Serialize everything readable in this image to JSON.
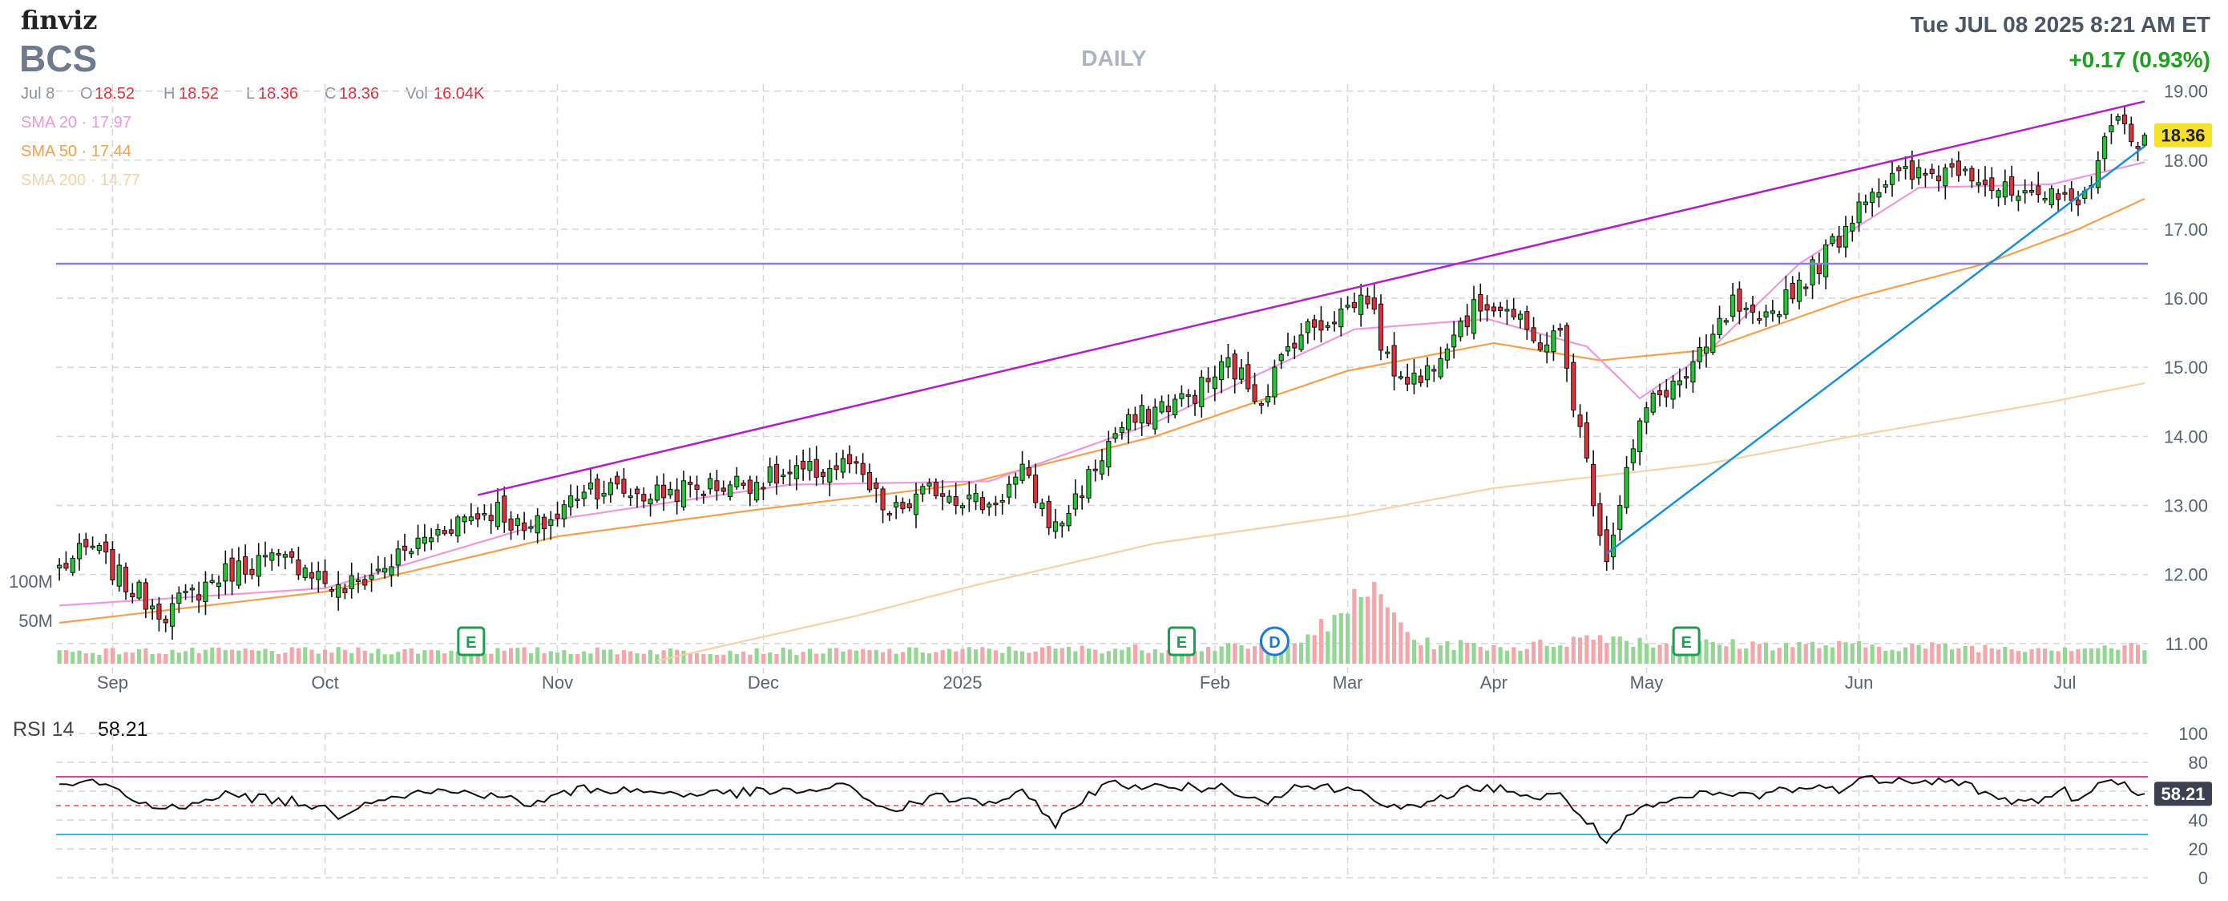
{
  "header": {
    "logo": "finviz",
    "ticker": "BCS",
    "timeframe": "DAILY",
    "datetime": "Tue JUL 08 2025 8:21 AM ET",
    "change": "+0.17 (0.93%)"
  },
  "ohlc": {
    "date": "Jul 8",
    "open_label": "O",
    "open": "18.52",
    "high_label": "H",
    "high": "18.52",
    "low_label": "L",
    "low": "18.36",
    "close_label": "C",
    "close": "18.36",
    "vol_label": "Vol",
    "vol": "16.04K"
  },
  "sma_legend": [
    {
      "label": "SMA 20",
      "value": "17.97",
      "color": "#ee99dd"
    },
    {
      "label": "SMA 50",
      "value": "17.44",
      "color": "#f5a04f"
    },
    {
      "label": "SMA 200",
      "value": "14.77",
      "color": "#f5d2a8"
    }
  ],
  "colors": {
    "up": "#22c833",
    "down": "#e0303a",
    "volume_up": "#92d892",
    "volume_down": "#f4a6aa",
    "channel": "#b21fc6",
    "support": "#1a8fd6",
    "hline": "#8a83cc",
    "rsi": "#111111",
    "rsi_upper": "#cc4b9c",
    "rsi_mid": "#e05050",
    "rsi_lower": "#3cb8d8",
    "price_badge": "#f5e12a",
    "rsi_badge": "#3b4150",
    "earnings": "#18a050",
    "dividend": "#1a7ad8"
  },
  "chart_data": {
    "type": "candlestick",
    "title": "BCS",
    "timeframe": "DAILY",
    "y_axis": {
      "min": 10.8,
      "max": 19.1,
      "ticks": [
        "11.00",
        "12.00",
        "13.00",
        "14.00",
        "15.00",
        "16.00",
        "17.00",
        "18.00",
        "19.00"
      ]
    },
    "x_labels": [
      "Sep",
      "Oct",
      "Nov",
      "Dec",
      "2025",
      "Feb",
      "Mar",
      "Apr",
      "May",
      "Jun",
      "Jul"
    ],
    "x_label_index": [
      8,
      40,
      75,
      106,
      136,
      174,
      194,
      216,
      239,
      271,
      302
    ],
    "n_bars": 315,
    "anchors": [
      [
        0,
        12.1
      ],
      [
        5,
        12.4
      ],
      [
        10,
        11.85
      ],
      [
        16,
        11.45
      ],
      [
        24,
        11.98
      ],
      [
        30,
        12.2
      ],
      [
        37,
        12.15
      ],
      [
        42,
        11.75
      ],
      [
        48,
        12.05
      ],
      [
        54,
        12.45
      ],
      [
        60,
        12.8
      ],
      [
        66,
        12.95
      ],
      [
        70,
        12.6
      ],
      [
        75,
        12.85
      ],
      [
        79,
        13.3
      ],
      [
        88,
        13.15
      ],
      [
        96,
        13.25
      ],
      [
        104,
        13.35
      ],
      [
        112,
        13.45
      ],
      [
        119,
        13.6
      ],
      [
        125,
        12.85
      ],
      [
        132,
        13.25
      ],
      [
        140,
        13.0
      ],
      [
        145,
        13.45
      ],
      [
        150,
        12.65
      ],
      [
        155,
        13.4
      ],
      [
        159,
        14.05
      ],
      [
        166,
        14.45
      ],
      [
        170,
        14.55
      ],
      [
        176,
        15.05
      ],
      [
        181,
        14.55
      ],
      [
        186,
        15.45
      ],
      [
        192,
        15.75
      ],
      [
        197,
        16.05
      ],
      [
        200,
        15.05
      ],
      [
        205,
        14.8
      ],
      [
        210,
        15.6
      ],
      [
        215,
        15.95
      ],
      [
        218,
        15.85
      ],
      [
        222,
        15.35
      ],
      [
        226,
        15.45
      ],
      [
        230,
        13.6
      ],
      [
        233,
        12.25
      ],
      [
        236,
        13.5
      ],
      [
        239,
        14.4
      ],
      [
        242,
        14.7
      ],
      [
        245,
        14.85
      ],
      [
        248,
        15.25
      ],
      [
        252,
        15.9
      ],
      [
        256,
        15.55
      ],
      [
        260,
        16.05
      ],
      [
        264,
        16.4
      ],
      [
        268,
        16.9
      ],
      [
        272,
        17.55
      ],
      [
        277,
        17.75
      ],
      [
        282,
        17.8
      ],
      [
        287,
        17.95
      ],
      [
        292,
        17.55
      ],
      [
        298,
        17.35
      ],
      [
        302,
        17.65
      ],
      [
        304,
        17.2
      ],
      [
        307,
        18.1
      ],
      [
        310,
        18.55
      ],
      [
        312,
        18.3
      ],
      [
        314,
        18.36
      ]
    ],
    "sma20_anchors": [
      [
        0,
        11.55
      ],
      [
        40,
        11.8
      ],
      [
        75,
        12.8
      ],
      [
        110,
        13.3
      ],
      [
        140,
        13.35
      ],
      [
        165,
        14.2
      ],
      [
        195,
        15.55
      ],
      [
        215,
        15.7
      ],
      [
        230,
        15.3
      ],
      [
        238,
        14.55
      ],
      [
        248,
        15.2
      ],
      [
        262,
        16.5
      ],
      [
        280,
        17.6
      ],
      [
        300,
        17.65
      ],
      [
        314,
        17.97
      ]
    ],
    "sma50_anchors": [
      [
        0,
        11.3
      ],
      [
        40,
        11.75
      ],
      [
        75,
        12.55
      ],
      [
        106,
        12.95
      ],
      [
        136,
        13.3
      ],
      [
        165,
        14.0
      ],
      [
        194,
        14.95
      ],
      [
        216,
        15.35
      ],
      [
        232,
        15.1
      ],
      [
        248,
        15.25
      ],
      [
        270,
        16.0
      ],
      [
        290,
        16.5
      ],
      [
        304,
        17.0
      ],
      [
        314,
        17.44
      ]
    ],
    "sma200_anchors": [
      [
        90,
        10.75
      ],
      [
        120,
        11.4
      ],
      [
        136,
        11.8
      ],
      [
        165,
        12.45
      ],
      [
        194,
        12.85
      ],
      [
        216,
        13.25
      ],
      [
        248,
        13.6
      ],
      [
        270,
        14.0
      ],
      [
        300,
        14.5
      ],
      [
        314,
        14.77
      ]
    ],
    "volume_anchors": [
      [
        0,
        0.15
      ],
      [
        60,
        0.16
      ],
      [
        120,
        0.15
      ],
      [
        180,
        0.2
      ],
      [
        193,
        0.5
      ],
      [
        196,
        1.0
      ],
      [
        205,
        0.25
      ],
      [
        220,
        0.2
      ],
      [
        233,
        0.35
      ],
      [
        240,
        0.25
      ],
      [
        290,
        0.2
      ],
      [
        314,
        0.2
      ]
    ],
    "volume_axis": [
      "100M",
      "50M"
    ],
    "horizontal_line": 16.5,
    "channel_line": {
      "from": [
        63,
        13.15
      ],
      "to": [
        314,
        18.85
      ]
    },
    "support_line": {
      "from": [
        233,
        12.3
      ],
      "to": [
        314,
        18.2
      ]
    },
    "events": [
      {
        "type": "E",
        "bar": 62
      },
      {
        "type": "E",
        "bar": 169
      },
      {
        "type": "D",
        "bar": 183
      },
      {
        "type": "E",
        "bar": 245
      }
    ],
    "last_price": "18.36",
    "rsi": {
      "label": "RSI 14",
      "value": "58.21",
      "ticks": [
        "100",
        "80",
        "60",
        "40",
        "20",
        "0"
      ],
      "levels": [
        70,
        50,
        30
      ],
      "anchors": [
        [
          0,
          62
        ],
        [
          5,
          67
        ],
        [
          12,
          52
        ],
        [
          16,
          47
        ],
        [
          24,
          58
        ],
        [
          30,
          55
        ],
        [
          37,
          52
        ],
        [
          42,
          44
        ],
        [
          48,
          56
        ],
        [
          56,
          60
        ],
        [
          66,
          58
        ],
        [
          70,
          50
        ],
        [
          79,
          62
        ],
        [
          96,
          58
        ],
        [
          112,
          60
        ],
        [
          119,
          63
        ],
        [
          125,
          46
        ],
        [
          132,
          56
        ],
        [
          140,
          52
        ],
        [
          145,
          58
        ],
        [
          150,
          38
        ],
        [
          155,
          58
        ],
        [
          159,
          66
        ],
        [
          166,
          62
        ],
        [
          176,
          63
        ],
        [
          181,
          52
        ],
        [
          186,
          64
        ],
        [
          192,
          62
        ],
        [
          197,
          60
        ],
        [
          200,
          50
        ],
        [
          205,
          47
        ],
        [
          210,
          60
        ],
        [
          215,
          62
        ],
        [
          218,
          62
        ],
        [
          222,
          55
        ],
        [
          226,
          57
        ],
        [
          230,
          40
        ],
        [
          233,
          24
        ],
        [
          236,
          40
        ],
        [
          239,
          48
        ],
        [
          242,
          52
        ],
        [
          248,
          58
        ],
        [
          256,
          57
        ],
        [
          260,
          62
        ],
        [
          268,
          62
        ],
        [
          272,
          68
        ],
        [
          277,
          69
        ],
        [
          287,
          66
        ],
        [
          292,
          53
        ],
        [
          298,
          54
        ],
        [
          302,
          60
        ],
        [
          304,
          52
        ],
        [
          307,
          64
        ],
        [
          310,
          66
        ],
        [
          314,
          58.21
        ]
      ]
    }
  }
}
